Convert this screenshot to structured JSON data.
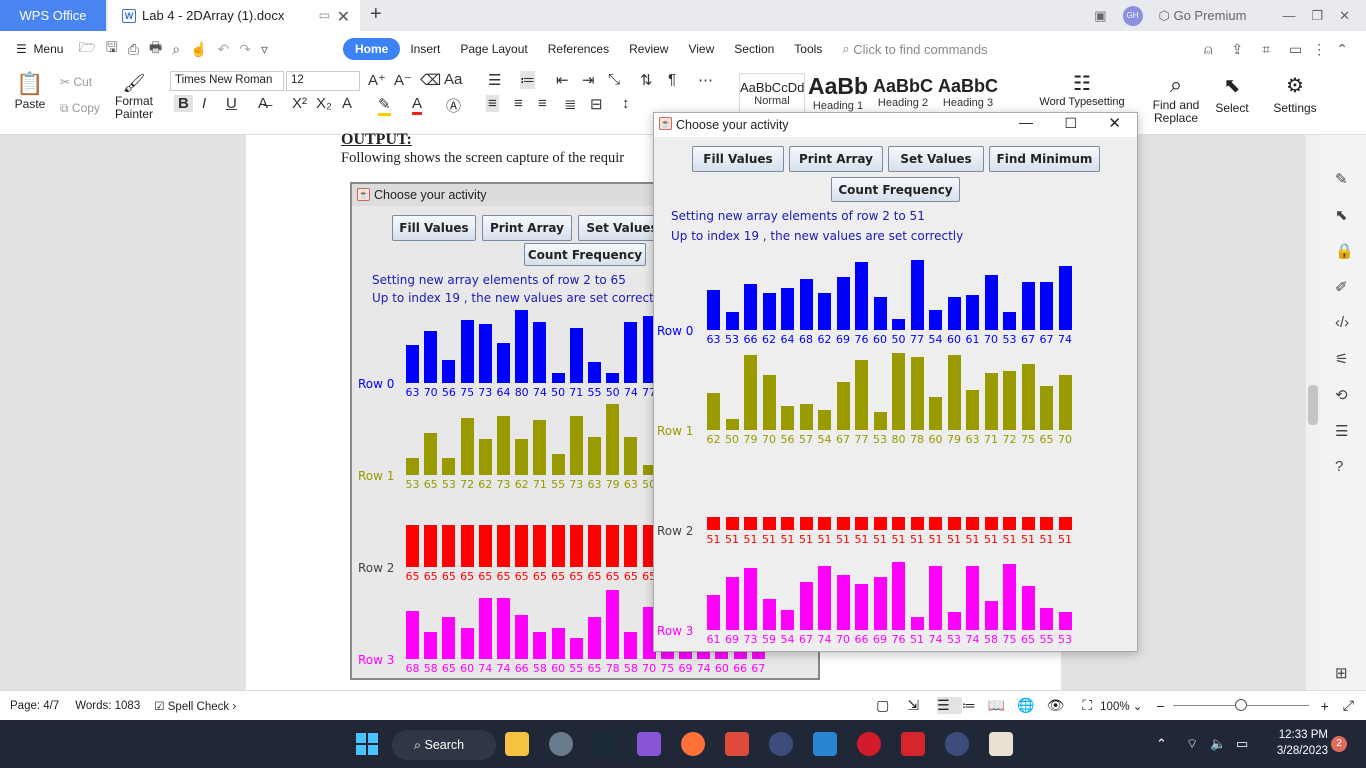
{
  "titlebar": {
    "app_tab": "WPS Office",
    "doc_tab": "Lab 4 - 2DArray (1).docx",
    "avatar": "GH",
    "premium": "Go Premium"
  },
  "menu": {
    "menu_label": "Menu",
    "tabs": [
      "Home",
      "Insert",
      "Page Layout",
      "References",
      "Review",
      "View",
      "Section",
      "Tools"
    ],
    "search_placeholder": "Click to find commands"
  },
  "ribbon": {
    "paste": "Paste",
    "cut": "Cut",
    "copy": "Copy",
    "format_painter_1": "Format",
    "format_painter_2": "Painter",
    "font_name": "Times New Roman",
    "font_size": "12",
    "styles": [
      {
        "preview": "AaBbCcDd",
        "name": "Normal"
      },
      {
        "preview": "AaBb",
        "name": "Heading 1"
      },
      {
        "preview": "AaBbC",
        "name": "Heading 2"
      },
      {
        "preview": "AaBbC",
        "name": "Heading 3"
      }
    ],
    "word_typesetting": "Word Typesetting",
    "find_replace_1": "Find and",
    "find_replace_2": "Replace",
    "select": "Select",
    "settings": "Settings"
  },
  "document": {
    "heading": "OUTPUT:",
    "description": "Following shows the screen capture of the requir"
  },
  "window_back": {
    "title": "Choose your activity",
    "buttons": [
      "Fill Values",
      "Print Array",
      "Set Values"
    ],
    "count_button": "Count Frequency",
    "msg1": "Setting new array elements of row 2 to 65",
    "msg2": "Up to index 19 , the new values are set correctly",
    "rows": [
      {
        "label": "Row 0",
        "color": "#0000ff",
        "values": [
          63,
          70,
          56,
          75,
          73,
          64,
          80,
          74,
          50,
          71,
          55,
          50,
          74,
          77
        ]
      },
      {
        "label": "Row 1",
        "color": "#999900",
        "values": [
          53,
          65,
          53,
          72,
          62,
          73,
          62,
          71,
          55,
          73,
          63,
          79,
          63,
          50
        ]
      },
      {
        "label": "Row 2",
        "color": "#ff0000",
        "values": [
          65,
          65,
          65,
          65,
          65,
          65,
          65,
          65,
          65,
          65,
          65,
          65,
          65,
          65
        ]
      },
      {
        "label": "Row 3",
        "color": "#ff00ff",
        "values": [
          68,
          58,
          65,
          60,
          74,
          74,
          66,
          58,
          60,
          55,
          65,
          78,
          58,
          70,
          75,
          69,
          74,
          60,
          66,
          67
        ]
      }
    ]
  },
  "window_front": {
    "title": "Choose your activity",
    "buttons": [
      "Fill Values",
      "Print Array",
      "Set Values",
      "Find Minimum"
    ],
    "count_button": "Count Frequency",
    "msg1": "Setting new array elements of row 2 to 51",
    "msg2": "Up to index 19 , the new values are set correctly",
    "rows": [
      {
        "label": "Row 0",
        "color": "#0000ff",
        "values": [
          63,
          53,
          66,
          62,
          64,
          68,
          62,
          69,
          76,
          60,
          50,
          77,
          54,
          60,
          61,
          70,
          53,
          67,
          67,
          74
        ]
      },
      {
        "label": "Row 1",
        "color": "#999900",
        "values": [
          62,
          50,
          79,
          70,
          56,
          57,
          54,
          67,
          77,
          53,
          80,
          78,
          60,
          79,
          63,
          71,
          72,
          75,
          65,
          70
        ]
      },
      {
        "label": "Row 2",
        "color": "#ff0000",
        "values": [
          51,
          51,
          51,
          51,
          51,
          51,
          51,
          51,
          51,
          51,
          51,
          51,
          51,
          51,
          51,
          51,
          51,
          51,
          51,
          51
        ]
      },
      {
        "label": "Row 3",
        "color": "#ff00ff",
        "values": [
          61,
          69,
          73,
          59,
          54,
          67,
          74,
          70,
          66,
          69,
          76,
          51,
          74,
          53,
          74,
          58,
          75,
          65,
          55,
          53
        ]
      }
    ]
  },
  "statusbar": {
    "page": "Page: 4/7",
    "words": "Words: 1083",
    "spell": "Spell Check",
    "zoom": "100%"
  },
  "taskbar": {
    "search": "Search",
    "time": "12:33 PM",
    "date": "3/28/2023",
    "notifications": "2"
  }
}
